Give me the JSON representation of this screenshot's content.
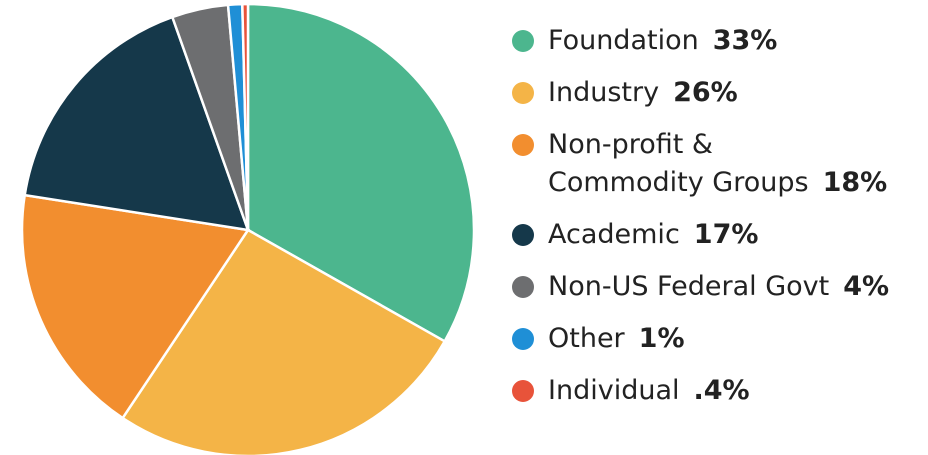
{
  "chart_data": {
    "type": "pie",
    "categories": [
      "Foundation",
      "Industry",
      "Non-profit &\nCommodity Groups",
      "Academic",
      "Non-US Federal Govt",
      "Other",
      "Individual"
    ],
    "values": [
      33,
      26,
      18,
      17,
      4,
      1,
      0.4
    ],
    "value_labels": [
      "33%",
      "26%",
      "18%",
      "17%",
      "4%",
      "1%",
      ".4%"
    ],
    "colors": [
      "#4cb68e",
      "#f4b447",
      "#f28e2f",
      "#15384a",
      "#6d6e70",
      "#1f8fd6",
      "#e8533a"
    ]
  }
}
